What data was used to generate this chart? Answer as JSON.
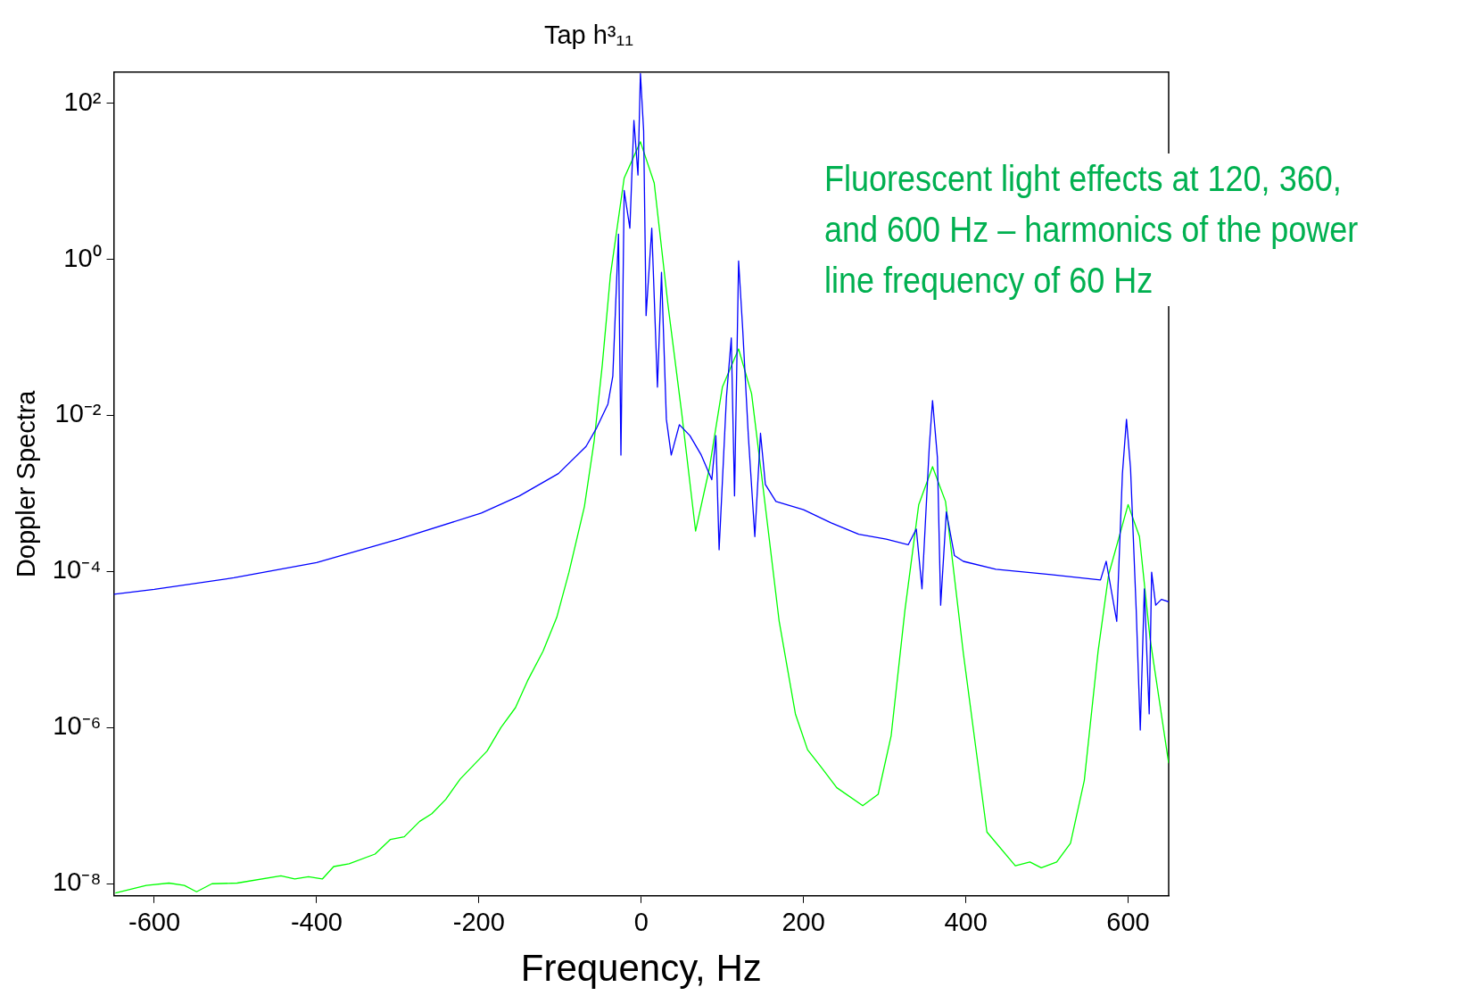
{
  "chart_data": {
    "type": "line",
    "title": "Tap h³₁₁",
    "xlabel": "Frequency, Hz",
    "ylabel": "Doppler Spectra",
    "log": "y",
    "grid": false,
    "xlim": [
      -650,
      650
    ],
    "xticks": [
      -600,
      -400,
      -200,
      0,
      200,
      400,
      600
    ],
    "ylim": [
      7e-09,
      250
    ],
    "yticks": [
      {
        "value": 1e-08,
        "label": "10⁻⁸"
      },
      {
        "value": 1e-06,
        "label": "10⁻⁶"
      },
      {
        "value": 0.0001,
        "label": "10⁻⁴"
      },
      {
        "value": 0.01,
        "label": "10⁻²"
      },
      {
        "value": 1,
        "label": "10⁰"
      },
      {
        "value": 100,
        "label": "10²"
      }
    ],
    "annotations": [
      "Fluorescent light effects at 120, 360, and 600 Hz – harmonics of the power line frequency of 60 Hz"
    ],
    "series": [
      {
        "color": "#0000ff",
        "x": [
          -650,
          -600,
          -502,
          -400,
          -299,
          -197,
          -150,
          -102,
          -68,
          -55,
          -41,
          -35,
          -28,
          -25,
          -21,
          -14,
          -9,
          -4,
          -1,
          3,
          6,
          13,
          20,
          25,
          31,
          37,
          47,
          60,
          74,
          87,
          92,
          96,
          105,
          111,
          115,
          120,
          125,
          132,
          140,
          147,
          153,
          166,
          200,
          234,
          268,
          302,
          329,
          339,
          346,
          355,
          359,
          365,
          369,
          376,
          386,
          397,
          437,
          505,
          566,
          573,
          586,
          593,
          598,
          603,
          610,
          615,
          620,
          626,
          629,
          634,
          641,
          650
        ],
        "values": [
          5.1e-05,
          5.9e-05,
          8.3e-05,
          0.00013,
          0.00026,
          0.00056,
          0.00093,
          0.0018,
          0.004,
          0.0069,
          0.014,
          0.032,
          2.1,
          0.0031,
          7.6,
          2.5,
          60,
          12,
          240,
          44,
          0.19,
          2.5,
          0.023,
          0.68,
          0.0089,
          0.0031,
          0.0076,
          0.0055,
          0.0031,
          0.0015,
          0.0055,
          0.00019,
          0.017,
          0.098,
          0.00093,
          0.95,
          0.13,
          0.0055,
          0.00028,
          0.0059,
          0.0013,
          0.00079,
          0.00062,
          0.00042,
          0.0003,
          0.00026,
          0.00022,
          0.00035,
          6e-05,
          0.004,
          0.0155,
          0.0029,
          3.7e-05,
          0.00058,
          0.00016,
          0.000135,
          0.000107,
          9.1e-05,
          7.8e-05,
          0.000135,
          2.3e-05,
          0.0018,
          0.0089,
          0.0021,
          3.2e-05,
          9.3e-07,
          6e-05,
          1.5e-06,
          9.8e-05,
          3.7e-05,
          4.4e-05,
          4.1e-05
        ]
      },
      {
        "color": "#00ff00",
        "x": [
          -648,
          -610,
          -582,
          -563,
          -548,
          -529,
          -498,
          -444,
          -427,
          -410,
          -393,
          -379,
          -360,
          -328,
          -309,
          -292,
          -273,
          -258,
          -241,
          -223,
          -190,
          -173,
          -155,
          -140,
          -121,
          -104,
          -89,
          -70,
          -58,
          -48,
          -38,
          -21,
          -1,
          16,
          33,
          50,
          67,
          84,
          100,
          120,
          136,
          149,
          170,
          190,
          205,
          222,
          241,
          273,
          292,
          308,
          325,
          342,
          359,
          375,
          397,
          426,
          461,
          479,
          493,
          512,
          529,
          546,
          563,
          576,
          600,
          614,
          627,
          650
        ],
        "values": [
          7.6e-09,
          9.5e-09,
          1.02e-08,
          9.5e-09,
          7.9e-09,
          1e-08,
          1.02e-08,
          1.26e-08,
          1.15e-08,
          1.23e-08,
          1.15e-08,
          1.66e-08,
          1.8e-08,
          2.4e-08,
          3.7e-08,
          4e-08,
          6.3e-08,
          7.9e-08,
          1.2e-07,
          2.2e-07,
          5e-07,
          1e-06,
          1.8e-06,
          4e-06,
          9.5e-06,
          2.6e-05,
          9.8e-05,
          0.00068,
          0.0047,
          0.044,
          0.62,
          11,
          32,
          9.5,
          0.26,
          0.0105,
          0.00033,
          0.0021,
          0.023,
          0.071,
          0.019,
          0.0015,
          2.3e-05,
          1.5e-06,
          5.2e-07,
          3.1e-07,
          1.7e-07,
          1e-07,
          1.4e-07,
          7.9e-07,
          3.2e-05,
          0.00072,
          0.0022,
          0.00079,
          8.9e-06,
          4.6e-08,
          1.7e-08,
          1.9e-08,
          1.6e-08,
          1.9e-08,
          3.3e-08,
          2.1e-07,
          9.5e-06,
          9.1e-05,
          0.00072,
          0.00028,
          1.4e-05,
          3.5e-07
        ]
      }
    ]
  }
}
